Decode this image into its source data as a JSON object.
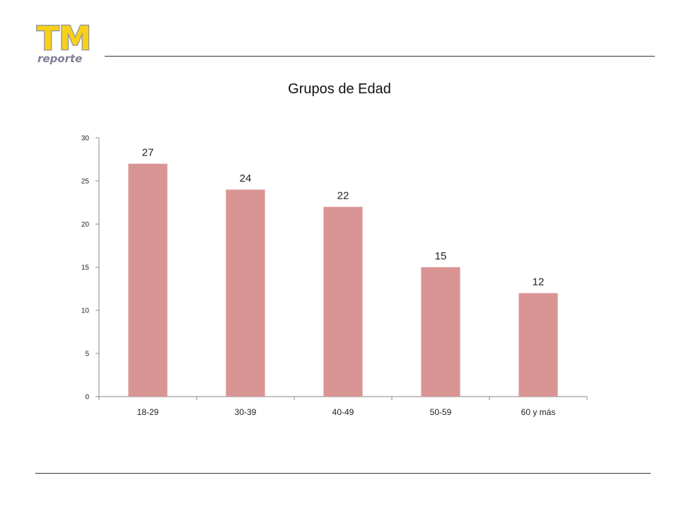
{
  "logo": {
    "main_text": "TM",
    "sub_text": "reporte",
    "fill_color": "#f7d117",
    "outline_color": "#8f8fa3"
  },
  "chart_data": {
    "type": "bar",
    "title": "Grupos de Edad",
    "xlabel": "",
    "ylabel": "",
    "categories": [
      "18-29",
      "30-39",
      "40-49",
      "50-59",
      "60 y más"
    ],
    "values": [
      27,
      24,
      22,
      15,
      12
    ],
    "ylim": [
      0,
      30
    ],
    "yticks": [
      0,
      5,
      10,
      15,
      20,
      25,
      30
    ],
    "bar_color": "#d99594",
    "grid": false,
    "legend": "none"
  }
}
